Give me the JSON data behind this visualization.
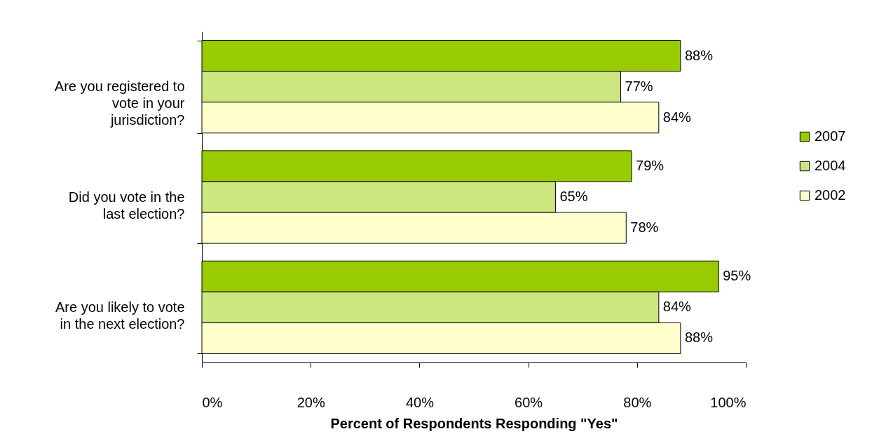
{
  "chart_data": {
    "type": "bar",
    "orientation": "horizontal",
    "xlabel": "Percent of Respondents Responding \"Yes\"",
    "categories": [
      "Are you registered to vote in your jurisdiction?",
      "Did you vote in the last election?",
      "Are you likely to vote in the next election?"
    ],
    "series": [
      {
        "name": "2007",
        "color": "#99cc00",
        "values": [
          88,
          79,
          95
        ],
        "value_labels": [
          "88%",
          "79%",
          "95%"
        ]
      },
      {
        "name": "2004",
        "color": "#cce680",
        "values": [
          77,
          65,
          84
        ],
        "value_labels": [
          "77%",
          "65%",
          "84%"
        ]
      },
      {
        "name": "2002",
        "color": "#ffffcc",
        "values": [
          84,
          78,
          88
        ],
        "value_labels": [
          "84%",
          "78%",
          "88%"
        ]
      }
    ],
    "xlim": [
      0,
      100
    ],
    "xticks": [
      {
        "value": 0,
        "label": "0%"
      },
      {
        "value": 20,
        "label": "20%"
      },
      {
        "value": 40,
        "label": "40%"
      },
      {
        "value": 60,
        "label": "60%"
      },
      {
        "value": 80,
        "label": "80%"
      },
      {
        "value": 100,
        "label": "100%"
      }
    ],
    "legend": "right",
    "grid": false
  }
}
